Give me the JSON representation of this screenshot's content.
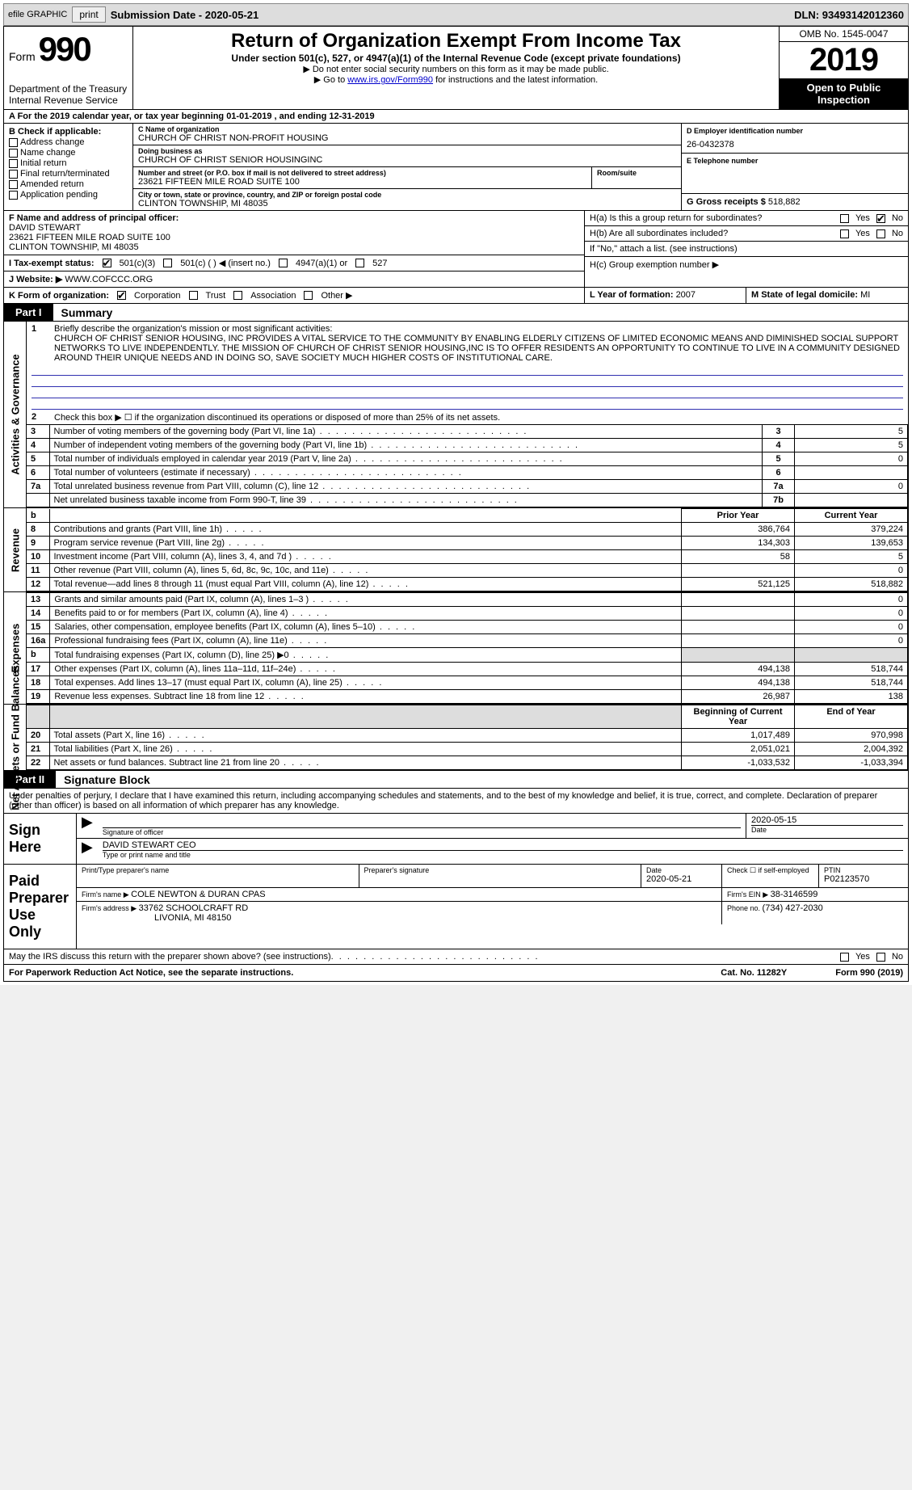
{
  "topbar": {
    "efile": "efile GRAPHIC",
    "print": "print",
    "submission_label": "Submission Date - ",
    "submission_date": "2020-05-21",
    "dln_label": "DLN: ",
    "dln": "93493142012360"
  },
  "header": {
    "form_word": "Form",
    "form_num": "990",
    "dept1": "Department of the Treasury",
    "dept2": "Internal Revenue Service",
    "title": "Return of Organization Exempt From Income Tax",
    "sub": "Under section 501(c), 527, or 4947(a)(1) of the Internal Revenue Code (except private foundations)",
    "note1": "▶ Do not enter social security numbers on this form as it may be made public.",
    "note2_pre": "▶ Go to ",
    "note2_link": "www.irs.gov/Form990",
    "note2_post": " for instructions and the latest information.",
    "omb": "OMB No. 1545-0047",
    "year": "2019",
    "open_pub": "Open to Public Inspection"
  },
  "row_a": {
    "text": "A For the 2019 calendar year, or tax year beginning 01-01-2019    , and ending 12-31-2019"
  },
  "col_b": {
    "hdr": "B Check if applicable:",
    "opts": [
      "Address change",
      "Name change",
      "Initial return",
      "Final return/terminated",
      "Amended return",
      "Application pending"
    ]
  },
  "col_c": {
    "name_lbl": "C Name of organization",
    "name": "CHURCH OF CHRIST NON-PROFIT HOUSING",
    "dba_lbl": "Doing business as",
    "dba": "CHURCH OF CHRIST SENIOR HOUSINGINC",
    "addr_lbl": "Number and street (or P.O. box if mail is not delivered to street address)",
    "addr": "23621 FIFTEEN MILE ROAD SUITE 100",
    "room_lbl": "Room/suite",
    "city_lbl": "City or town, state or province, country, and ZIP or foreign postal code",
    "city": "CLINTON TOWNSHIP, MI  48035"
  },
  "col_de": {
    "d_lbl": "D Employer identification number",
    "d_val": "26-0432378",
    "e_lbl": "E Telephone number",
    "g_lbl": "G Gross receipts $ ",
    "g_val": "518,882"
  },
  "fgh": {
    "f_lbl": "F Name and address of principal officer:",
    "f_name": "DAVID STEWART",
    "f_addr1": "23621 FIFTEEN MILE ROAD SUITE 100",
    "f_addr2": "CLINTON TOWNSHIP, MI  48035",
    "i_lbl": "I   Tax-exempt status:",
    "i_501c3": "501(c)(3)",
    "i_501c": "501(c) (   ) ◀ (insert no.)",
    "i_4947": "4947(a)(1) or",
    "i_527": "527",
    "j_lbl": "J   Website: ▶",
    "j_val": " WWW.COFCCC.ORG",
    "ha_lbl": "H(a)  Is this a group return for subordinates?",
    "hb_lbl": "H(b)  Are all subordinates included?",
    "hb_note": "If \"No,\" attach a list. (see instructions)",
    "hc_lbl": "H(c)  Group exemption number ▶",
    "yes": "Yes",
    "no": "No"
  },
  "row_k": {
    "k_lbl": "K Form of organization:",
    "k_corp": "Corporation",
    "k_trust": "Trust",
    "k_assoc": "Association",
    "k_other": "Other ▶",
    "l_lbl": "L Year of formation: ",
    "l_val": "2007",
    "m_lbl": "M State of legal domicile: ",
    "m_val": "MI"
  },
  "parts": {
    "p1": "Part I",
    "p1_title": "Summary",
    "p2": "Part II",
    "p2_title": "Signature Block"
  },
  "summary": {
    "line1_lbl": "Briefly describe the organization's mission or most significant activities:",
    "mission": "CHURCH OF CHRIST SENIOR HOUSING, INC PROVIDES A VITAL SERVICE TO THE COMMUNITY BY ENABLING ELDERLY CITIZENS OF LIMITED ECONOMIC MEANS AND DIMINISHED SOCIAL SUPPORT NETWORKS TO LIVE INDEPENDENTLY. THE MISSION OF CHURCH OF CHRIST SENIOR HOUSING,INC IS TO OFFER RESIDENTS AN OPPORTUNITY TO CONTINUE TO LIVE IN A COMMUNITY DESIGNED AROUND THEIR UNIQUE NEEDS AND IN DOING SO, SAVE SOCIETY MUCH HIGHER COSTS OF INSTITUTIONAL CARE.",
    "line2": "Check this box ▶ ☐ if the organization discontinued its operations or disposed of more than 25% of its net assets.",
    "lines_gov": [
      {
        "n": "3",
        "txt": "Number of voting members of the governing body (Part VI, line 1a)",
        "box": "3",
        "val": "5"
      },
      {
        "n": "4",
        "txt": "Number of independent voting members of the governing body (Part VI, line 1b)",
        "box": "4",
        "val": "5"
      },
      {
        "n": "5",
        "txt": "Total number of individuals employed in calendar year 2019 (Part V, line 2a)",
        "box": "5",
        "val": "0"
      },
      {
        "n": "6",
        "txt": "Total number of volunteers (estimate if necessary)",
        "box": "6",
        "val": ""
      },
      {
        "n": "7a",
        "txt": "Total unrelated business revenue from Part VIII, column (C), line 12",
        "box": "7a",
        "val": "0"
      },
      {
        "n": "",
        "txt": "Net unrelated business taxable income from Form 990-T, line 39",
        "box": "7b",
        "val": ""
      }
    ],
    "col_prior": "Prior Year",
    "col_current": "Current Year",
    "revenue": [
      {
        "n": "8",
        "txt": "Contributions and grants (Part VIII, line 1h)",
        "p": "386,764",
        "c": "379,224"
      },
      {
        "n": "9",
        "txt": "Program service revenue (Part VIII, line 2g)",
        "p": "134,303",
        "c": "139,653"
      },
      {
        "n": "10",
        "txt": "Investment income (Part VIII, column (A), lines 3, 4, and 7d )",
        "p": "58",
        "c": "5"
      },
      {
        "n": "11",
        "txt": "Other revenue (Part VIII, column (A), lines 5, 6d, 8c, 9c, 10c, and 11e)",
        "p": "",
        "c": "0"
      },
      {
        "n": "12",
        "txt": "Total revenue—add lines 8 through 11 (must equal Part VIII, column (A), line 12)",
        "p": "521,125",
        "c": "518,882"
      }
    ],
    "expenses": [
      {
        "n": "13",
        "txt": "Grants and similar amounts paid (Part IX, column (A), lines 1–3 )",
        "p": "",
        "c": "0"
      },
      {
        "n": "14",
        "txt": "Benefits paid to or for members (Part IX, column (A), line 4)",
        "p": "",
        "c": "0"
      },
      {
        "n": "15",
        "txt": "Salaries, other compensation, employee benefits (Part IX, column (A), lines 5–10)",
        "p": "",
        "c": "0"
      },
      {
        "n": "16a",
        "txt": "Professional fundraising fees (Part IX, column (A), line 11e)",
        "p": "",
        "c": "0"
      },
      {
        "n": "b",
        "txt": "Total fundraising expenses (Part IX, column (D), line 25) ▶0",
        "p": "shade",
        "c": "shade"
      },
      {
        "n": "17",
        "txt": "Other expenses (Part IX, column (A), lines 11a–11d, 11f–24e)",
        "p": "494,138",
        "c": "518,744"
      },
      {
        "n": "18",
        "txt": "Total expenses. Add lines 13–17 (must equal Part IX, column (A), line 25)",
        "p": "494,138",
        "c": "518,744"
      },
      {
        "n": "19",
        "txt": "Revenue less expenses. Subtract line 18 from line 12",
        "p": "26,987",
        "c": "138"
      }
    ],
    "col_begin": "Beginning of Current Year",
    "col_end": "End of Year",
    "netassets": [
      {
        "n": "20",
        "txt": "Total assets (Part X, line 16)",
        "p": "1,017,489",
        "c": "970,998"
      },
      {
        "n": "21",
        "txt": "Total liabilities (Part X, line 26)",
        "p": "2,051,021",
        "c": "2,004,392"
      },
      {
        "n": "22",
        "txt": "Net assets or fund balances. Subtract line 21 from line 20",
        "p": "-1,033,532",
        "c": "-1,033,394"
      }
    ],
    "tabs": {
      "gov": "Activities & Governance",
      "rev": "Revenue",
      "exp": "Expenses",
      "net": "Net Assets or Fund Balances"
    }
  },
  "penalties": "Under penalties of perjury, I declare that I have examined this return, including accompanying schedules and statements, and to the best of my knowledge and belief, it is true, correct, and complete. Declaration of preparer (other than officer) is based on all information of which preparer has any knowledge.",
  "sign": {
    "here": "Sign Here",
    "sig_officer_lbl": "Signature of officer",
    "date_val": "2020-05-15",
    "date_lbl": "Date",
    "name_val": "DAVID STEWART CEO",
    "name_lbl": "Type or print name and title",
    "paid": "Paid Preparer Use Only",
    "prep_name_lbl": "Print/Type preparer's name",
    "prep_sig_lbl": "Preparer's signature",
    "prep_date_lbl": "Date",
    "prep_date_val": "2020-05-21",
    "self_emp": "Check ☐ if self-employed",
    "ptin_lbl": "PTIN",
    "ptin_val": "P02123570",
    "firm_name_lbl": "Firm's name     ▶ ",
    "firm_name": "COLE NEWTON & DURAN CPAS",
    "firm_ein_lbl": "Firm's EIN ▶ ",
    "firm_ein": "38-3146599",
    "firm_addr_lbl": "Firm's address ▶ ",
    "firm_addr1": "33762 SCHOOLCRAFT RD",
    "firm_addr2": "LIVONIA, MI  48150",
    "phone_lbl": "Phone no. ",
    "phone": "(734) 427-2030"
  },
  "discuss": {
    "txt": "May the IRS discuss this return with the preparer shown above? (see instructions)",
    "yes": "Yes",
    "no": "No"
  },
  "footer": {
    "left": "For Paperwork Reduction Act Notice, see the separate instructions.",
    "mid": "Cat. No. 11282Y",
    "right": "Form 990 (2019)"
  }
}
